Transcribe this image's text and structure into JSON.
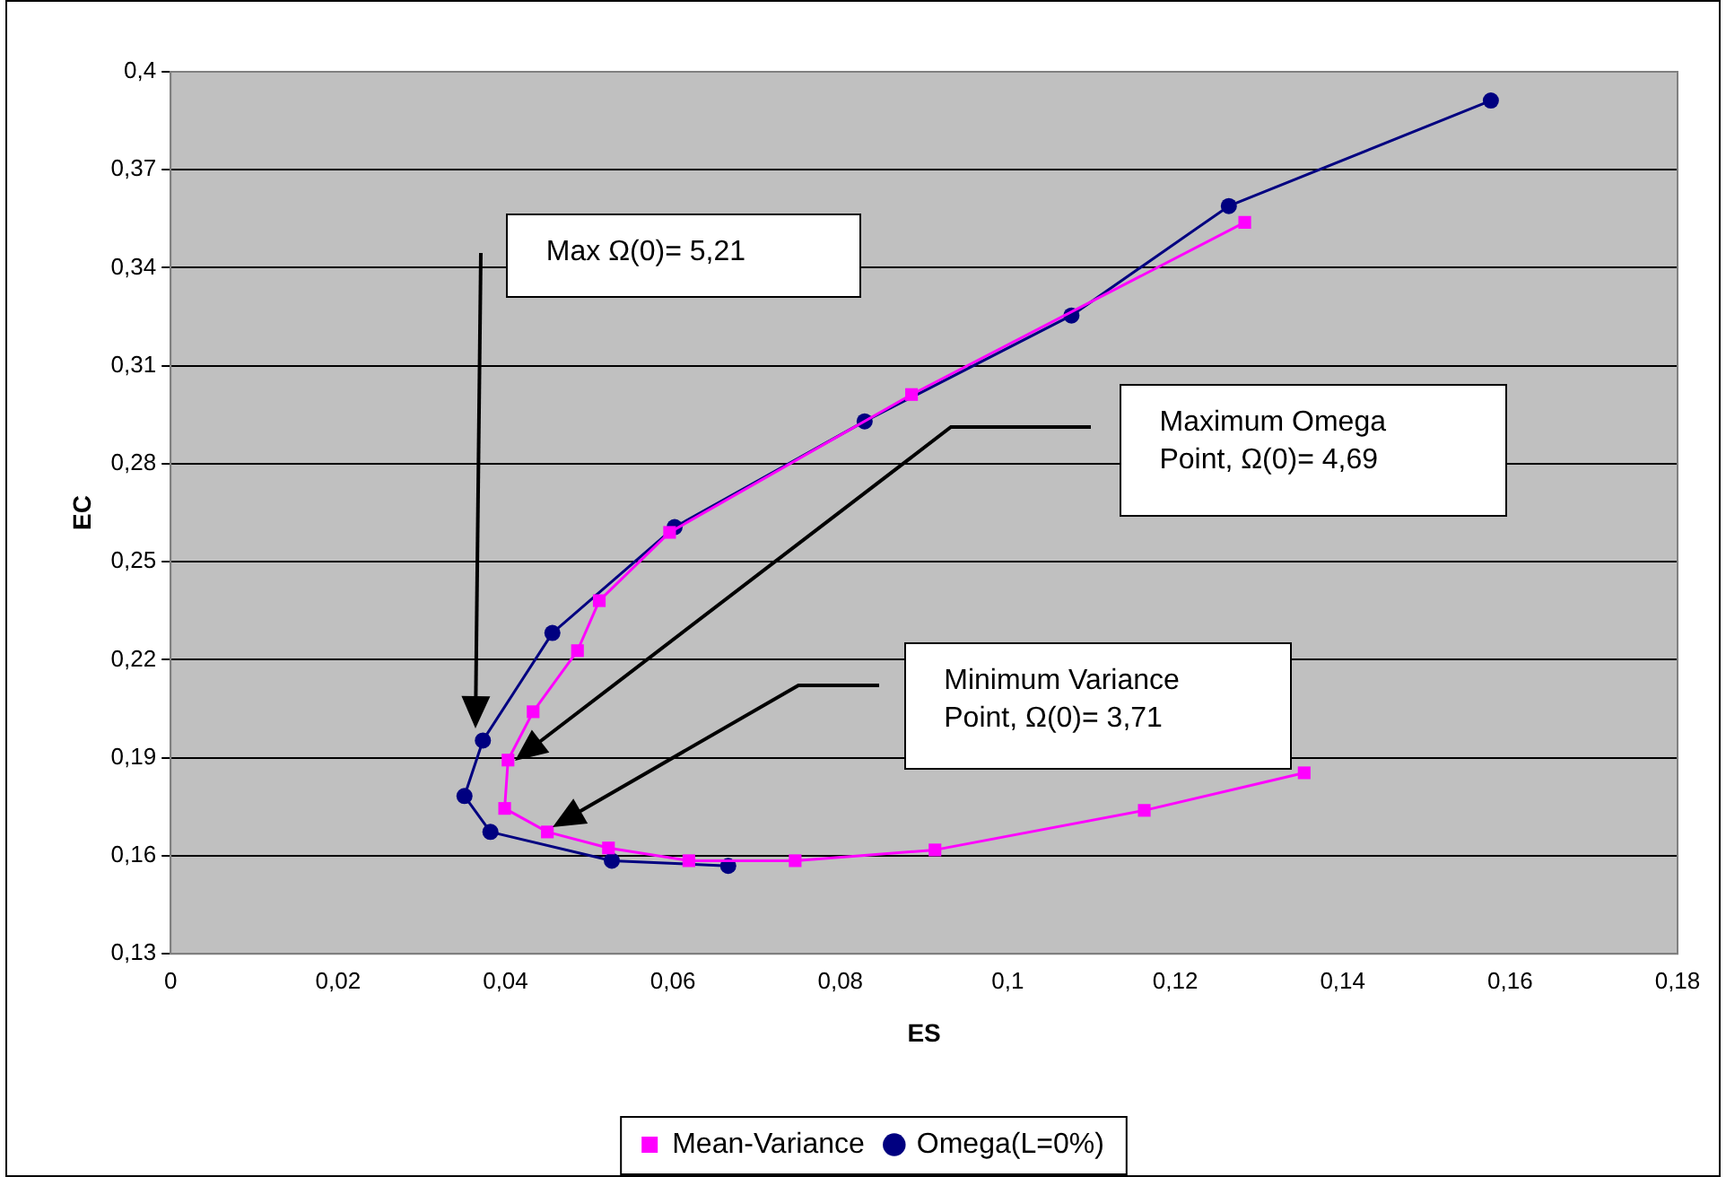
{
  "chart_data": {
    "type": "line",
    "xlabel": "ES",
    "ylabel": "EC",
    "xlim": [
      0,
      0.18
    ],
    "xticks": [
      {
        "value": 0,
        "label": "0"
      },
      {
        "value": 0.02,
        "label": "0,02"
      },
      {
        "value": 0.04,
        "label": "0,04"
      },
      {
        "value": 0.06,
        "label": "0,06"
      },
      {
        "value": 0.08,
        "label": "0,08"
      },
      {
        "value": 0.1,
        "label": "0,1"
      },
      {
        "value": 0.12,
        "label": "0,12"
      },
      {
        "value": 0.14,
        "label": "0,14"
      },
      {
        "value": 0.16,
        "label": "0,16"
      },
      {
        "value": 0.18,
        "label": "0,18"
      }
    ],
    "ylim": [
      0.13,
      0.4
    ],
    "yticks": [
      {
        "value": 0.13,
        "label": "0,13"
      },
      {
        "value": 0.16,
        "label": "0,16"
      },
      {
        "value": 0.19,
        "label": "0,19"
      },
      {
        "value": 0.22,
        "label": "0,22"
      },
      {
        "value": 0.25,
        "label": "0,25"
      },
      {
        "value": 0.28,
        "label": "0,28"
      },
      {
        "value": 0.31,
        "label": "0,31"
      },
      {
        "value": 0.34,
        "label": "0,34"
      },
      {
        "value": 0.37,
        "label": "0,37"
      },
      {
        "value": 0.4,
        "label": "0,4"
      }
    ],
    "grid": "y",
    "legend": "bottom",
    "series": [
      {
        "name": "Mean-Variance",
        "color": "#ff00ff",
        "marker": "square",
        "x": [
          0.1354,
          0.1163,
          0.0913,
          0.0746,
          0.0619,
          0.0523,
          0.045,
          0.0399,
          0.0403,
          0.0433,
          0.0486,
          0.0512,
          0.0596,
          0.0885,
          0.1283
        ],
        "values": [
          0.1854,
          0.1739,
          0.1618,
          0.1585,
          0.1585,
          0.1624,
          0.1673,
          0.1745,
          0.1893,
          0.2041,
          0.2228,
          0.2381,
          0.259,
          0.3012,
          0.3539
        ]
      },
      {
        "name": "Omega(L=0%)",
        "color": "#000080",
        "marker": "circle",
        "x": [
          0.0666,
          0.0527,
          0.0382,
          0.0351,
          0.0373,
          0.0456,
          0.0602,
          0.0829,
          0.1076,
          0.1264,
          0.1577
        ],
        "values": [
          0.1569,
          0.1585,
          0.1673,
          0.1783,
          0.1953,
          0.2282,
          0.2606,
          0.293,
          0.3254,
          0.3589,
          0.3912
        ]
      }
    ],
    "annotations": [
      "Max Ω(0)=  5,21",
      "Maximum Omega Point, Ω(0)= 4,69",
      "Minimum Variance Point, Ω(0)= 3,71"
    ]
  }
}
